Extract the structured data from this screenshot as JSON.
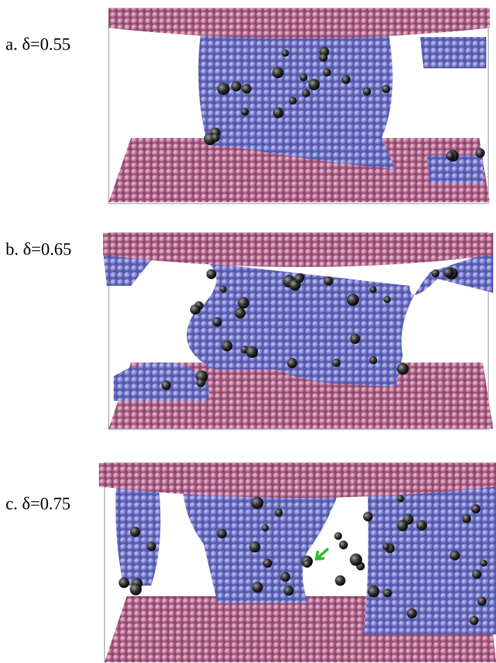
{
  "panels": [
    {
      "label": "a. δ=0.55"
    },
    {
      "label": "b. δ=0.65"
    },
    {
      "label": "c. δ=0.75"
    }
  ]
}
